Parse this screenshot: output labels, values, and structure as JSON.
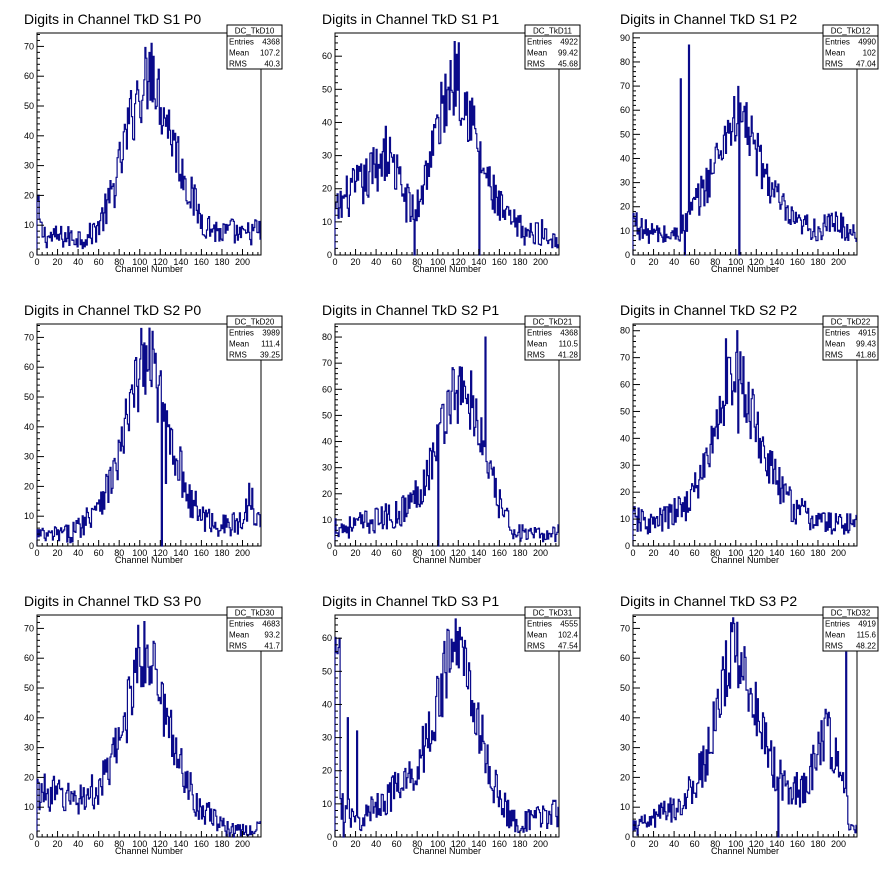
{
  "chart_data": [
    {
      "type": "histogram",
      "name": "DC_TkD10",
      "title": "Digits in Channel TkD S1 P0",
      "xlabel": "Channel Number",
      "xlim": [
        0,
        218
      ],
      "ylim": [
        0,
        74.5
      ],
      "xticks": [
        0,
        20,
        40,
        60,
        80,
        100,
        120,
        140,
        160,
        180,
        200
      ],
      "yticks": [
        0,
        10,
        20,
        30,
        40,
        50,
        60,
        70
      ],
      "stats": {
        "Entries": "4368",
        "Mean": "107.2",
        "RMS": "40.3"
      },
      "profile": [
        [
          0,
          18
        ],
        [
          4,
          8
        ],
        [
          10,
          6
        ],
        [
          20,
          6
        ],
        [
          30,
          6
        ],
        [
          40,
          6
        ],
        [
          50,
          6
        ],
        [
          60,
          10
        ],
        [
          70,
          17
        ],
        [
          80,
          29
        ],
        [
          90,
          44
        ],
        [
          100,
          55
        ],
        [
          108,
          60
        ],
        [
          113,
          63
        ],
        [
          120,
          52
        ],
        [
          130,
          42
        ],
        [
          140,
          30
        ],
        [
          150,
          20
        ],
        [
          160,
          12
        ],
        [
          170,
          9
        ],
        [
          180,
          7
        ],
        [
          190,
          8
        ],
        [
          200,
          6
        ],
        [
          210,
          8
        ],
        [
          218,
          8
        ]
      ],
      "spikes": [
        [
          111,
          71
        ],
        [
          96,
          54
        ]
      ]
    },
    {
      "type": "histogram",
      "name": "DC_TkD11",
      "title": "Digits in Channel TkD S1 P1",
      "xlabel": "Channel Number",
      "xlim": [
        0,
        218
      ],
      "ylim": [
        0,
        67
      ],
      "xticks": [
        0,
        20,
        40,
        60,
        80,
        100,
        120,
        140,
        160,
        180,
        200
      ],
      "yticks": [
        0,
        10,
        20,
        30,
        40,
        50,
        60
      ],
      "stats": {
        "Entries": "4922",
        "Mean": "99.42",
        "RMS": "45.68"
      },
      "profile": [
        [
          0,
          12
        ],
        [
          10,
          17
        ],
        [
          20,
          20
        ],
        [
          30,
          22
        ],
        [
          40,
          27
        ],
        [
          50,
          31
        ],
        [
          60,
          24
        ],
        [
          70,
          16
        ],
        [
          78,
          12
        ],
        [
          85,
          20
        ],
        [
          90,
          27
        ],
        [
          100,
          38
        ],
        [
          110,
          50
        ],
        [
          118,
          55
        ],
        [
          125,
          48
        ],
        [
          133,
          42
        ],
        [
          140,
          30
        ],
        [
          150,
          21
        ],
        [
          160,
          14
        ],
        [
          170,
          10
        ],
        [
          180,
          8
        ],
        [
          190,
          6
        ],
        [
          200,
          7
        ],
        [
          210,
          5
        ],
        [
          218,
          6
        ]
      ],
      "spikes": [
        [
          120,
          64
        ],
        [
          77,
          0
        ],
        [
          140,
          0
        ],
        [
          56,
          28
        ],
        [
          47,
          35
        ]
      ]
    },
    {
      "type": "histogram",
      "name": "DC_TkD12",
      "title": "Digits in Channel TkD S1 P2",
      "xlabel": "Channel Number",
      "xlim": [
        0,
        218
      ],
      "ylim": [
        0,
        92
      ],
      "xticks": [
        0,
        20,
        40,
        60,
        80,
        100,
        120,
        140,
        160,
        180,
        200
      ],
      "yticks": [
        0,
        10,
        20,
        30,
        40,
        50,
        60,
        70,
        80,
        90
      ],
      "stats": {
        "Entries": "4990",
        "Mean": "102",
        "RMS": "47.04"
      },
      "profile": [
        [
          0,
          15
        ],
        [
          10,
          10
        ],
        [
          20,
          9
        ],
        [
          30,
          8
        ],
        [
          40,
          8
        ],
        [
          46,
          10
        ],
        [
          52,
          14
        ],
        [
          60,
          20
        ],
        [
          70,
          28
        ],
        [
          80,
          38
        ],
        [
          90,
          50
        ],
        [
          100,
          57
        ],
        [
          105,
          59
        ],
        [
          112,
          52
        ],
        [
          120,
          42
        ],
        [
          130,
          32
        ],
        [
          140,
          24
        ],
        [
          150,
          16
        ],
        [
          160,
          12
        ],
        [
          170,
          12
        ],
        [
          180,
          10
        ],
        [
          190,
          12
        ],
        [
          200,
          14
        ],
        [
          207,
          10
        ],
        [
          212,
          10
        ]
      ],
      "spikes": [
        [
          54,
          87
        ],
        [
          46,
          73
        ],
        [
          50,
          0
        ],
        [
          103,
          0
        ],
        [
          104,
          63
        ]
      ]
    },
    {
      "type": "histogram",
      "name": "DC_TkD20",
      "title": "Digits in Channel TkD S2 P0",
      "xlabel": "Channel Number",
      "xlim": [
        0,
        218
      ],
      "ylim": [
        0,
        74.5
      ],
      "xticks": [
        0,
        20,
        40,
        60,
        80,
        100,
        120,
        140,
        160,
        180,
        200
      ],
      "yticks": [
        0,
        10,
        20,
        30,
        40,
        50,
        60,
        70
      ],
      "stats": {
        "Entries": "3989",
        "Mean": "111.4",
        "RMS": "39.25"
      },
      "profile": [
        [
          0,
          4
        ],
        [
          10,
          3
        ],
        [
          20,
          4
        ],
        [
          30,
          4
        ],
        [
          40,
          6
        ],
        [
          50,
          10
        ],
        [
          60,
          16
        ],
        [
          70,
          20
        ],
        [
          80,
          30
        ],
        [
          90,
          45
        ],
        [
          98,
          55
        ],
        [
          105,
          62
        ],
        [
          112,
          60
        ],
        [
          120,
          50
        ],
        [
          130,
          38
        ],
        [
          140,
          25
        ],
        [
          150,
          15
        ],
        [
          160,
          10
        ],
        [
          170,
          8
        ],
        [
          180,
          7
        ],
        [
          190,
          7
        ],
        [
          200,
          8
        ],
        [
          208,
          18
        ],
        [
          212,
          12
        ]
      ],
      "spikes": [
        [
          101,
          73
        ],
        [
          112,
          72
        ],
        [
          121,
          0
        ],
        [
          125,
          21
        ]
      ]
    },
    {
      "type": "histogram",
      "name": "DC_TkD21",
      "title": "Digits in Channel TkD S2 P1",
      "xlabel": "Channel Number",
      "xlim": [
        0,
        218
      ],
      "ylim": [
        0,
        85
      ],
      "xticks": [
        0,
        20,
        40,
        60,
        80,
        100,
        120,
        140,
        160,
        180,
        200
      ],
      "yticks": [
        0,
        10,
        20,
        30,
        40,
        50,
        60,
        70,
        80
      ],
      "stats": {
        "Entries": "4368",
        "Mean": "110.5",
        "RMS": "41.28"
      },
      "profile": [
        [
          0,
          8
        ],
        [
          10,
          7
        ],
        [
          20,
          8
        ],
        [
          30,
          9
        ],
        [
          40,
          10
        ],
        [
          50,
          11
        ],
        [
          60,
          12
        ],
        [
          70,
          15
        ],
        [
          80,
          20
        ],
        [
          90,
          28
        ],
        [
          100,
          40
        ],
        [
          108,
          52
        ],
        [
          115,
          60
        ],
        [
          125,
          58
        ],
        [
          135,
          50
        ],
        [
          143,
          42
        ],
        [
          150,
          28
        ],
        [
          160,
          16
        ],
        [
          170,
          8
        ],
        [
          180,
          5
        ],
        [
          190,
          4
        ],
        [
          200,
          4
        ],
        [
          210,
          5
        ],
        [
          218,
          5
        ]
      ],
      "spikes": [
        [
          146,
          80
        ],
        [
          100,
          0
        ],
        [
          132,
          67
        ]
      ]
    },
    {
      "type": "histogram",
      "name": "DC_TkD22",
      "title": "Digits in Channel TkD S2 P2",
      "xlabel": "Channel Number",
      "xlim": [
        0,
        218
      ],
      "ylim": [
        0,
        82.5
      ],
      "xticks": [
        0,
        20,
        40,
        60,
        80,
        100,
        120,
        140,
        160,
        180,
        200
      ],
      "yticks": [
        0,
        10,
        20,
        30,
        40,
        50,
        60,
        70,
        80
      ],
      "stats": {
        "Entries": "4915",
        "Mean": "99.43",
        "RMS": "41.86"
      },
      "profile": [
        [
          0,
          10
        ],
        [
          10,
          9
        ],
        [
          20,
          8
        ],
        [
          30,
          10
        ],
        [
          40,
          12
        ],
        [
          50,
          15
        ],
        [
          60,
          20
        ],
        [
          70,
          30
        ],
        [
          80,
          42
        ],
        [
          90,
          56
        ],
        [
          95,
          62
        ],
        [
          100,
          65
        ],
        [
          107,
          60
        ],
        [
          115,
          50
        ],
        [
          125,
          38
        ],
        [
          135,
          28
        ],
        [
          145,
          20
        ],
        [
          155,
          15
        ],
        [
          165,
          12
        ],
        [
          175,
          10
        ],
        [
          185,
          9
        ],
        [
          195,
          8
        ],
        [
          205,
          9
        ],
        [
          212,
          8
        ]
      ],
      "spikes": [
        [
          90,
          77
        ],
        [
          101,
          80
        ],
        [
          108,
          48
        ],
        [
          102,
          42
        ]
      ]
    },
    {
      "type": "histogram",
      "name": "DC_TkD30",
      "title": "Digits in Channel TkD S3 P0",
      "xlabel": "Channel Number",
      "xlim": [
        0,
        218
      ],
      "ylim": [
        0,
        74.5
      ],
      "xticks": [
        0,
        20,
        40,
        60,
        80,
        100,
        120,
        140,
        160,
        180,
        200
      ],
      "yticks": [
        0,
        10,
        20,
        30,
        40,
        50,
        60,
        70
      ],
      "stats": {
        "Entries": "4683",
        "Mean": "93.2",
        "RMS": "41.7"
      },
      "profile": [
        [
          0,
          15
        ],
        [
          10,
          15
        ],
        [
          20,
          14
        ],
        [
          30,
          13
        ],
        [
          40,
          13
        ],
        [
          50,
          14
        ],
        [
          60,
          16
        ],
        [
          70,
          22
        ],
        [
          80,
          32
        ],
        [
          90,
          45
        ],
        [
          95,
          58
        ],
        [
          100,
          62
        ],
        [
          110,
          58
        ],
        [
          118,
          50
        ],
        [
          125,
          40
        ],
        [
          135,
          30
        ],
        [
          145,
          20
        ],
        [
          155,
          12
        ],
        [
          165,
          8
        ],
        [
          175,
          5
        ],
        [
          185,
          3
        ],
        [
          195,
          2
        ],
        [
          205,
          2
        ],
        [
          215,
          3
        ]
      ],
      "spikes": [
        [
          98,
          71
        ],
        [
          114,
          65
        ]
      ]
    },
    {
      "type": "histogram",
      "name": "DC_TkD31",
      "title": "Digits in Channel TkD S3 P1",
      "xlabel": "Channel Number",
      "xlim": [
        0,
        218
      ],
      "ylim": [
        0,
        67
      ],
      "xticks": [
        0,
        20,
        40,
        60,
        80,
        100,
        120,
        140,
        160,
        180,
        200
      ],
      "yticks": [
        0,
        10,
        20,
        30,
        40,
        50,
        60
      ],
      "stats": {
        "Entries": "4555",
        "Mean": "102.4",
        "RMS": "47.54"
      },
      "profile": [
        [
          0,
          50
        ],
        [
          3,
          58
        ],
        [
          6,
          10
        ],
        [
          12,
          8
        ],
        [
          20,
          4
        ],
        [
          30,
          6
        ],
        [
          40,
          10
        ],
        [
          50,
          12
        ],
        [
          60,
          14
        ],
        [
          70,
          16
        ],
        [
          80,
          22
        ],
        [
          90,
          30
        ],
        [
          100,
          40
        ],
        [
          110,
          53
        ],
        [
          118,
          58
        ],
        [
          125,
          55
        ],
        [
          133,
          45
        ],
        [
          140,
          33
        ],
        [
          150,
          20
        ],
        [
          160,
          12
        ],
        [
          170,
          6
        ],
        [
          180,
          4
        ],
        [
          190,
          5
        ],
        [
          200,
          6
        ],
        [
          210,
          7
        ],
        [
          218,
          7
        ]
      ],
      "spikes": [
        [
          4,
          60
        ],
        [
          119,
          62
        ],
        [
          8,
          0
        ],
        [
          12,
          36
        ],
        [
          21,
          32
        ]
      ]
    },
    {
      "type": "histogram",
      "name": "DC_TkD32",
      "title": "Digits in Channel TkD S3 P2",
      "xlabel": "Channel Number",
      "xlim": [
        0,
        218
      ],
      "ylim": [
        0,
        74.5
      ],
      "xticks": [
        0,
        20,
        40,
        60,
        80,
        100,
        120,
        140,
        160,
        180,
        200
      ],
      "yticks": [
        0,
        10,
        20,
        30,
        40,
        50,
        60,
        70
      ],
      "stats": {
        "Entries": "4919",
        "Mean": "115.6",
        "RMS": "48.22"
      },
      "profile": [
        [
          0,
          3
        ],
        [
          10,
          4
        ],
        [
          20,
          6
        ],
        [
          30,
          8
        ],
        [
          40,
          10
        ],
        [
          50,
          12
        ],
        [
          60,
          18
        ],
        [
          70,
          25
        ],
        [
          80,
          38
        ],
        [
          90,
          55
        ],
        [
          100,
          64
        ],
        [
          108,
          58
        ],
        [
          115,
          48
        ],
        [
          125,
          38
        ],
        [
          135,
          25
        ],
        [
          143,
          20
        ],
        [
          150,
          18
        ],
        [
          160,
          16
        ],
        [
          170,
          18
        ],
        [
          180,
          28
        ],
        [
          188,
          38
        ],
        [
          195,
          28
        ],
        [
          202,
          22
        ],
        [
          208,
          10
        ],
        [
          212,
          3
        ]
      ],
      "spikes": [
        [
          101,
          72
        ],
        [
          207,
          62
        ],
        [
          141,
          0
        ],
        [
          191,
          40
        ]
      ]
    }
  ],
  "style": {
    "line_color": "#0a0a8a",
    "axis_color": "#000000",
    "background": "#ffffff"
  },
  "stat_labels": {
    "entries": "Entries",
    "mean": "Mean",
    "rms": "RMS"
  }
}
